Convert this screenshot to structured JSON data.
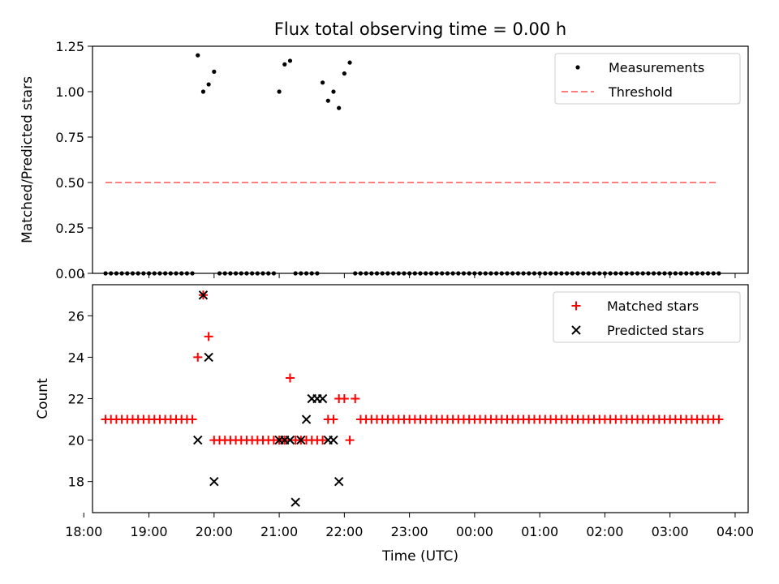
{
  "title": "Flux total observing time = 0.00 h",
  "chart_data": [
    {
      "type": "scatter",
      "ylabel": "Matched/Predicted stars",
      "xlim": [
        "18:08",
        "04:12"
      ],
      "ylim": [
        0.0,
        1.25
      ],
      "yticks": [
        "0.00",
        "0.25",
        "0.50",
        "0.75",
        "1.00",
        "1.25"
      ],
      "legend_position": "top-right",
      "series": [
        {
          "name": "Measurements",
          "marker": "dot",
          "color": "#000000",
          "x": [
            "18:20",
            "18:25",
            "18:30",
            "18:35",
            "18:40",
            "18:45",
            "18:50",
            "18:55",
            "19:00",
            "19:05",
            "19:10",
            "19:15",
            "19:20",
            "19:25",
            "19:30",
            "19:35",
            "19:40",
            "19:45",
            "19:50",
            "19:55",
            "20:00",
            "20:05",
            "20:10",
            "20:15",
            "20:20",
            "20:25",
            "20:30",
            "20:35",
            "20:40",
            "20:45",
            "20:50",
            "20:55",
            "21:00",
            "21:05",
            "21:10",
            "21:15",
            "21:20",
            "21:25",
            "21:30",
            "21:35",
            "21:40",
            "21:45",
            "21:50",
            "21:55",
            "22:00",
            "22:05",
            "22:10",
            "22:15",
            "22:20",
            "22:25",
            "22:30",
            "22:35",
            "22:40",
            "22:45",
            "22:50",
            "22:55",
            "23:00",
            "23:05",
            "23:10",
            "23:15",
            "23:20",
            "23:25",
            "23:30",
            "23:35",
            "23:40",
            "23:45",
            "23:50",
            "23:55",
            "00:00",
            "00:05",
            "00:10",
            "00:15",
            "00:20",
            "00:25",
            "00:30",
            "00:35",
            "00:40",
            "00:45",
            "00:50",
            "00:55",
            "01:00",
            "01:05",
            "01:10",
            "01:15",
            "01:20",
            "01:25",
            "01:30",
            "01:35",
            "01:40",
            "01:45",
            "01:50",
            "01:55",
            "02:00",
            "02:05",
            "02:10",
            "02:15",
            "02:20",
            "02:25",
            "02:30",
            "02:35",
            "02:40",
            "02:45",
            "02:50",
            "02:55",
            "03:00",
            "03:05",
            "03:10",
            "03:15",
            "03:20",
            "03:25",
            "03:30",
            "03:35",
            "03:40",
            "03:45"
          ],
          "y": [
            0,
            0,
            0,
            0,
            0,
            0,
            0,
            0,
            0,
            0,
            0,
            0,
            0,
            0,
            0,
            0,
            0,
            1.2,
            1.0,
            1.04,
            1.11,
            0,
            0,
            0,
            0,
            0,
            0,
            0,
            0,
            0,
            0,
            0,
            1.0,
            1.15,
            1.17,
            0,
            0,
            0,
            0,
            0,
            1.05,
            0.95,
            1.0,
            0.91,
            1.1,
            1.16,
            0,
            0,
            0,
            0,
            0,
            0,
            0,
            0,
            0,
            0,
            0,
            0,
            0,
            0,
            0,
            0,
            0,
            0,
            0,
            0,
            0,
            0,
            0,
            0,
            0,
            0,
            0,
            0,
            0,
            0,
            0,
            0,
            0,
            0,
            0,
            0,
            0,
            0,
            0,
            0,
            0,
            0,
            0,
            0,
            0,
            0,
            0,
            0,
            0,
            0,
            0,
            0,
            0,
            0,
            0,
            0,
            0,
            0,
            0,
            0,
            0,
            0,
            0,
            0,
            0,
            0,
            0,
            0
          ]
        },
        {
          "name": "Threshold",
          "type": "line",
          "style": "dashed",
          "color": "#ff7f7f",
          "x": [
            "18:20",
            "03:45"
          ],
          "y": [
            0.5,
            0.5
          ]
        }
      ]
    },
    {
      "type": "scatter",
      "xlabel": "Time (UTC)",
      "ylabel": "Count",
      "xlim": [
        "18:08",
        "04:12"
      ],
      "ylim": [
        16.5,
        27.5
      ],
      "xticks": [
        "18:00",
        "19:00",
        "20:00",
        "21:00",
        "22:00",
        "23:00",
        "00:00",
        "01:00",
        "02:00",
        "03:00",
        "04:00"
      ],
      "yticks": [
        "18",
        "20",
        "22",
        "24",
        "26"
      ],
      "legend_position": "top-right",
      "series": [
        {
          "name": "Matched stars",
          "marker": "plus",
          "color": "#ff0000",
          "x": [
            "18:20",
            "18:25",
            "18:30",
            "18:35",
            "18:40",
            "18:45",
            "18:50",
            "18:55",
            "19:00",
            "19:05",
            "19:10",
            "19:15",
            "19:20",
            "19:25",
            "19:30",
            "19:35",
            "19:40",
            "19:45",
            "19:50",
            "19:55",
            "20:00",
            "20:05",
            "20:10",
            "20:15",
            "20:20",
            "20:25",
            "20:30",
            "20:35",
            "20:40",
            "20:45",
            "20:50",
            "20:55",
            "21:00",
            "21:05",
            "21:10",
            "21:15",
            "21:20",
            "21:25",
            "21:30",
            "21:35",
            "21:40",
            "21:45",
            "21:50",
            "21:55",
            "22:00",
            "22:05",
            "22:10",
            "22:15",
            "22:20",
            "22:25",
            "22:30",
            "22:35",
            "22:40",
            "22:45",
            "22:50",
            "22:55",
            "23:00",
            "23:05",
            "23:10",
            "23:15",
            "23:20",
            "23:25",
            "23:30",
            "23:35",
            "23:40",
            "23:45",
            "23:50",
            "23:55",
            "00:00",
            "00:05",
            "00:10",
            "00:15",
            "00:20",
            "00:25",
            "00:30",
            "00:35",
            "00:40",
            "00:45",
            "00:50",
            "00:55",
            "01:00",
            "01:05",
            "01:10",
            "01:15",
            "01:20",
            "01:25",
            "01:30",
            "01:35",
            "01:40",
            "01:45",
            "01:50",
            "01:55",
            "02:00",
            "02:05",
            "02:10",
            "02:15",
            "02:20",
            "02:25",
            "02:30",
            "02:35",
            "02:40",
            "02:45",
            "02:50",
            "02:55",
            "03:00",
            "03:05",
            "03:10",
            "03:15",
            "03:20",
            "03:25",
            "03:30",
            "03:35",
            "03:40",
            "03:45"
          ],
          "y": [
            21,
            21,
            21,
            21,
            21,
            21,
            21,
            21,
            21,
            21,
            21,
            21,
            21,
            21,
            21,
            21,
            21,
            24,
            27,
            25,
            20,
            20,
            20,
            20,
            20,
            20,
            20,
            20,
            20,
            20,
            20,
            20,
            20,
            20,
            23,
            20,
            20,
            20,
            20,
            20,
            20,
            21,
            21,
            22,
            22,
            20,
            22,
            21,
            21,
            21,
            21,
            21,
            21,
            21,
            21,
            21,
            21,
            21,
            21,
            21,
            21,
            21,
            21,
            21,
            21,
            21,
            21,
            21,
            21,
            21,
            21,
            21,
            21,
            21,
            21,
            21,
            21,
            21,
            21,
            21,
            21,
            21,
            21,
            21,
            21,
            21,
            21,
            21,
            21,
            21,
            21,
            21,
            21,
            21,
            21,
            21,
            21,
            21,
            21,
            21,
            21,
            21,
            21,
            21,
            21,
            21,
            21,
            21,
            21,
            21,
            21,
            21,
            21,
            21
          ]
        },
        {
          "name": "Predicted stars",
          "marker": "x",
          "color": "#000000",
          "x": [
            "19:45",
            "19:50",
            "19:55",
            "20:00",
            "21:00",
            "21:05",
            "21:10",
            "21:15",
            "21:20",
            "21:25",
            "21:30",
            "21:35",
            "21:40",
            "21:45",
            "21:50",
            "21:55"
          ],
          "y": [
            20,
            27,
            24,
            18,
            20,
            20,
            20,
            17,
            20,
            21,
            22,
            22,
            22,
            20,
            20,
            18
          ]
        }
      ]
    }
  ]
}
